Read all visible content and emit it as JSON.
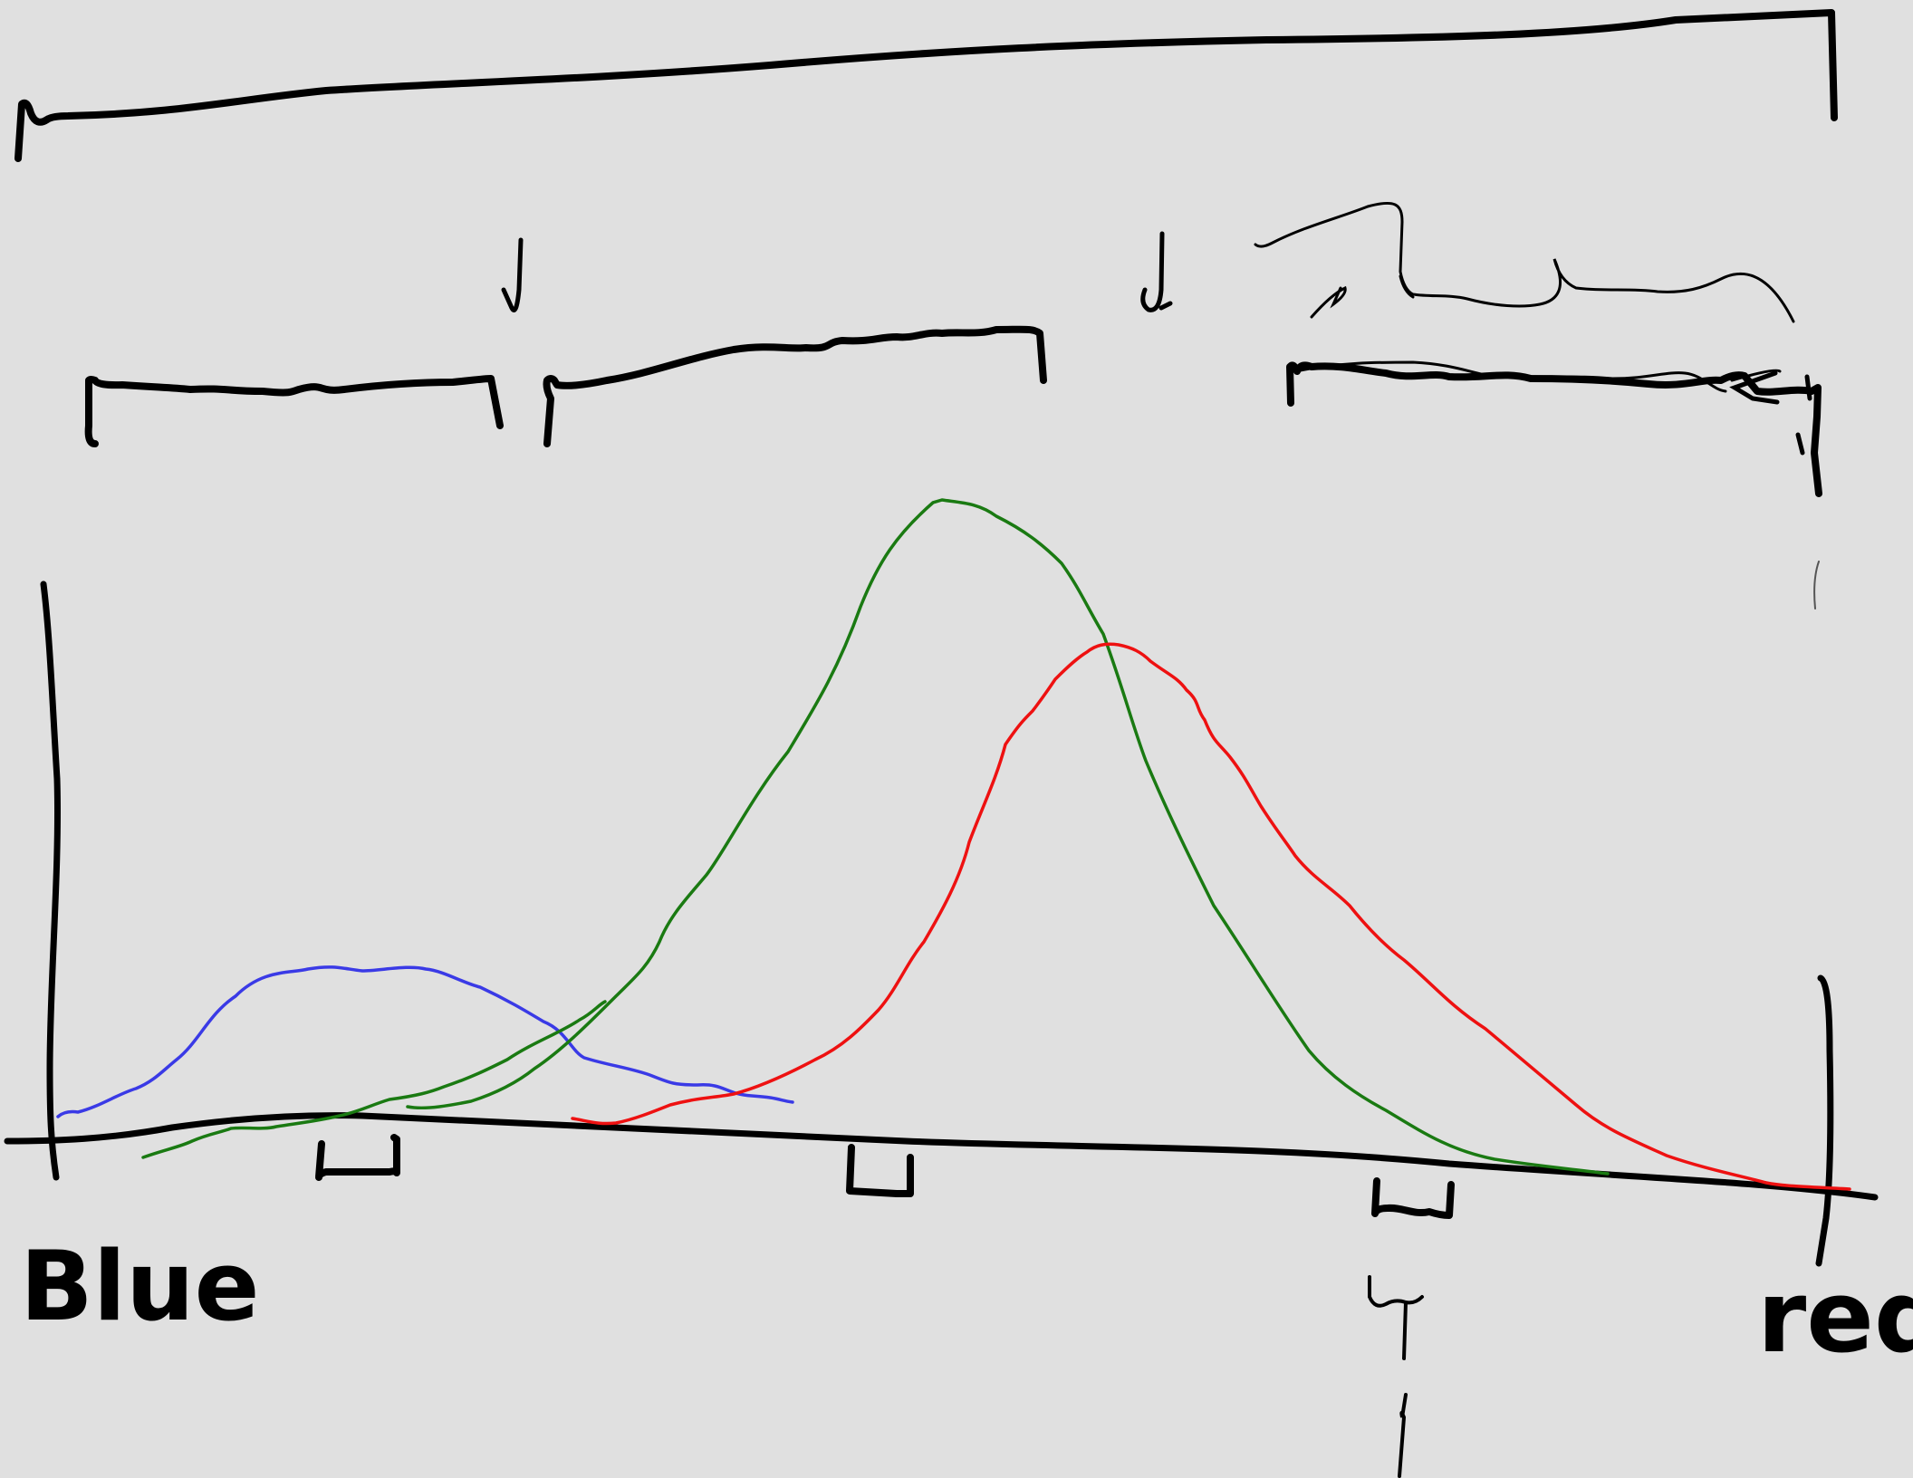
{
  "labels": {
    "left": "Blue",
    "right": "red"
  },
  "colors": {
    "background": "#e0e0e0",
    "ink": "#000000",
    "blue_curve": "#3a3ae6",
    "green_curve": "#1a7a12",
    "red_curve": "#ee1111"
  }
}
